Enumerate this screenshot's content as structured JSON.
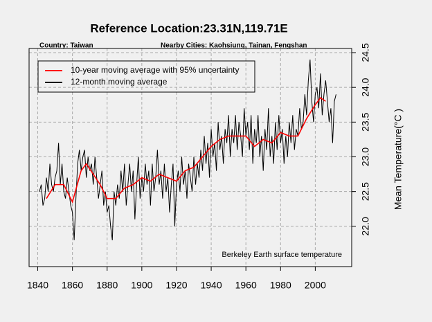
{
  "chart_data": {
    "type": "line",
    "title": "Reference Location:23.31N,119.71E",
    "subtitle_left": "Country: Taiwan",
    "subtitle_right": "Nearby Cities: Kaohsiung, Tainan, Fengshan",
    "annotation": "Berkeley Earth surface temperature",
    "y_label": "Mean Temperature(°C )",
    "xlim": [
      1835,
      2021
    ],
    "xticks": [
      1840,
      1860,
      1880,
      1900,
      1920,
      1940,
      1960,
      1980,
      2000
    ],
    "ylim": [
      21.42,
      24.56
    ],
    "yticks": [
      {
        "value": 22.0,
        "label": "22.0"
      },
      22.5,
      {
        "value": 23.0,
        "label": "23.0"
      },
      23.5,
      {
        "value": 24.0,
        "label": "24.0"
      },
      24.5
    ],
    "grid": true,
    "legend": "top-left",
    "series": [
      {
        "name": "10-year moving average with 95% uncertainty",
        "color": "#ff0000",
        "x": [
          1845,
          1850,
          1855,
          1860,
          1865,
          1868,
          1872,
          1876,
          1880,
          1885,
          1890,
          1895,
          1900,
          1905,
          1910,
          1915,
          1920,
          1925,
          1930,
          1935,
          1940,
          1945,
          1950,
          1955,
          1960,
          1965,
          1970,
          1975,
          1980,
          1985,
          1990,
          1995,
          2000,
          2003,
          2006
        ],
        "values": [
          22.4,
          22.6,
          22.6,
          22.35,
          22.8,
          22.9,
          22.75,
          22.6,
          22.4,
          22.4,
          22.55,
          22.6,
          22.7,
          22.65,
          22.75,
          22.7,
          22.65,
          22.8,
          22.85,
          23.0,
          23.15,
          23.25,
          23.3,
          23.3,
          23.3,
          23.15,
          23.25,
          23.2,
          23.35,
          23.3,
          23.3,
          23.55,
          23.75,
          23.85,
          23.8
        ]
      },
      {
        "name": "12-month moving average",
        "color": "#000000",
        "x": [
          1841,
          1842,
          1843,
          1844,
          1845,
          1846,
          1847,
          1848,
          1849,
          1850,
          1851,
          1852,
          1853,
          1854,
          1855,
          1856,
          1857,
          1858,
          1859,
          1860,
          1861,
          1862,
          1863,
          1864,
          1865,
          1866,
          1867,
          1868,
          1869,
          1870,
          1871,
          1872,
          1873,
          1874,
          1875,
          1876,
          1877,
          1878,
          1879,
          1880,
          1881,
          1882,
          1883,
          1884,
          1885,
          1886,
          1887,
          1888,
          1889,
          1890,
          1891,
          1892,
          1893,
          1894,
          1895,
          1896,
          1897,
          1898,
          1899,
          1900,
          1901,
          1902,
          1903,
          1904,
          1905,
          1906,
          1907,
          1908,
          1909,
          1910,
          1911,
          1912,
          1913,
          1914,
          1915,
          1916,
          1917,
          1918,
          1919,
          1920,
          1921,
          1922,
          1923,
          1924,
          1925,
          1926,
          1927,
          1928,
          1929,
          1930,
          1931,
          1932,
          1933,
          1934,
          1935,
          1936,
          1937,
          1938,
          1939,
          1940,
          1941,
          1942,
          1943,
          1944,
          1945,
          1946,
          1947,
          1948,
          1949,
          1950,
          1951,
          1952,
          1953,
          1954,
          1955,
          1956,
          1957,
          1958,
          1959,
          1960,
          1961,
          1962,
          1963,
          1964,
          1965,
          1966,
          1967,
          1968,
          1969,
          1970,
          1971,
          1972,
          1973,
          1974,
          1975,
          1976,
          1977,
          1978,
          1979,
          1980,
          1981,
          1982,
          1983,
          1984,
          1985,
          1986,
          1987,
          1988,
          1989,
          1990,
          1991,
          1992,
          1993,
          1994,
          1995,
          1996,
          1997,
          1998,
          1999,
          2000,
          2001,
          2002,
          2003,
          2004,
          2005,
          2006,
          2007,
          2008,
          2009,
          2010,
          2011,
          2012
        ],
        "values": [
          22.5,
          22.6,
          22.3,
          22.4,
          22.7,
          22.5,
          22.9,
          22.6,
          22.5,
          22.7,
          22.8,
          23.2,
          22.6,
          22.9,
          22.5,
          22.4,
          22.7,
          22.5,
          22.3,
          22.2,
          21.8,
          22.4,
          22.9,
          23.1,
          22.8,
          23.0,
          23.1,
          22.7,
          23.0,
          22.8,
          22.9,
          22.6,
          23.0,
          22.7,
          22.4,
          22.6,
          22.8,
          22.3,
          22.5,
          22.2,
          22.3,
          22.0,
          21.8,
          22.5,
          22.3,
          22.6,
          22.4,
          22.8,
          22.5,
          22.9,
          22.3,
          22.6,
          22.9,
          22.5,
          22.8,
          22.1,
          22.6,
          23.0,
          22.4,
          22.7,
          22.5,
          22.9,
          22.6,
          22.8,
          22.3,
          22.9,
          22.5,
          22.7,
          23.1,
          22.6,
          22.8,
          22.4,
          22.9,
          22.5,
          22.7,
          22.2,
          22.6,
          22.9,
          22.0,
          22.6,
          22.8,
          22.5,
          23.0,
          22.6,
          22.8,
          22.4,
          22.9,
          22.7,
          22.5,
          23.0,
          22.6,
          22.9,
          22.7,
          23.1,
          22.8,
          23.3,
          22.9,
          23.2,
          22.7,
          23.4,
          23.0,
          23.2,
          22.8,
          23.5,
          23.1,
          23.3,
          22.9,
          23.4,
          23.2,
          23.6,
          23.0,
          23.4,
          23.2,
          23.6,
          23.1,
          23.5,
          23.3,
          23.0,
          23.7,
          23.3,
          23.5,
          23.1,
          23.6,
          22.9,
          23.4,
          23.2,
          23.6,
          23.0,
          23.3,
          22.8,
          23.4,
          23.1,
          23.7,
          23.0,
          23.3,
          22.9,
          23.5,
          23.1,
          23.6,
          23.2,
          23.4,
          22.9,
          23.3,
          23.0,
          23.5,
          23.2,
          23.6,
          23.1,
          23.4,
          23.3,
          23.7,
          23.4,
          23.5,
          23.9,
          23.6,
          24.1,
          24.4,
          23.8,
          23.5,
          23.9,
          24.0,
          23.7,
          24.2,
          23.6,
          23.9,
          24.1,
          23.8,
          23.5,
          23.7,
          23.2,
          23.8,
          23.9
        ]
      }
    ]
  }
}
